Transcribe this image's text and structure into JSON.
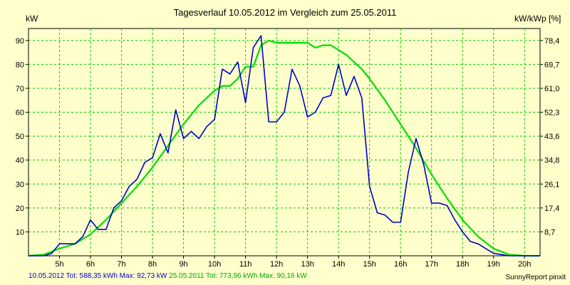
{
  "chart_data": {
    "type": "line",
    "title": "Tagesverlauf 10.05.2012 im Vergleich zum 25.05.2011",
    "ylabel_left": "kW",
    "ylabel_right": "kW/kWp [%]",
    "x_ticks": [
      "5h",
      "6h",
      "7h",
      "8h",
      "9h",
      "10h",
      "11h",
      "12h",
      "13h",
      "14h",
      "15h",
      "16h",
      "17h",
      "18h",
      "19h",
      "20h"
    ],
    "xlim": [
      4.0,
      20.5
    ],
    "ylim": [
      0,
      95
    ],
    "y_ticks_left": [
      10,
      20,
      30,
      40,
      50,
      60,
      70,
      80,
      90
    ],
    "y_ticks_right": [
      "8,7",
      "17,4",
      "26,1",
      "34,8",
      "43,6",
      "52,3",
      "61,0",
      "69,7",
      "78,4"
    ],
    "grid": true,
    "colors": {
      "background": "#ffffcc",
      "grid": "#00cc00",
      "series_2012": "#0000cc",
      "series_2011": "#00dd00"
    },
    "series": [
      {
        "name": "10.05.2012",
        "color": "#0000cc",
        "x": [
          4.0,
          4.5,
          4.75,
          5.0,
          5.25,
          5.5,
          5.75,
          6.0,
          6.25,
          6.5,
          6.75,
          7.0,
          7.25,
          7.5,
          7.75,
          8.0,
          8.25,
          8.5,
          8.75,
          9.0,
          9.25,
          9.5,
          9.75,
          10.0,
          10.25,
          10.5,
          10.75,
          11.0,
          11.25,
          11.5,
          11.75,
          12.0,
          12.25,
          12.5,
          12.75,
          13.0,
          13.25,
          13.5,
          13.75,
          14.0,
          14.25,
          14.5,
          14.75,
          15.0,
          15.25,
          15.5,
          15.75,
          16.0,
          16.25,
          16.5,
          16.75,
          17.0,
          17.25,
          17.5,
          17.75,
          18.0,
          18.25,
          18.5,
          18.75,
          19.0,
          19.25,
          19.5,
          19.75,
          20.0,
          20.5
        ],
        "values": [
          0,
          0,
          1,
          5,
          5,
          5,
          8,
          15,
          11,
          11,
          20,
          23,
          29,
          32,
          39,
          41,
          51,
          43,
          61,
          49,
          52,
          49,
          54,
          57,
          78,
          76,
          81,
          64,
          87,
          92,
          56,
          56,
          60,
          78,
          71,
          58,
          60,
          66,
          67,
          80,
          67,
          75,
          66,
          29,
          18,
          17,
          14,
          14,
          35,
          49,
          38,
          22,
          22,
          21,
          15,
          10,
          6,
          5,
          3,
          1,
          0.5,
          0,
          0,
          0,
          0
        ]
      },
      {
        "name": "25.05.2011",
        "color": "#00dd00",
        "x": [
          4.0,
          4.5,
          5.0,
          5.5,
          6.0,
          6.5,
          7.0,
          7.5,
          8.0,
          8.5,
          9.0,
          9.5,
          10.0,
          10.25,
          10.5,
          10.75,
          11.0,
          11.25,
          11.5,
          11.75,
          12.0,
          12.25,
          12.5,
          12.75,
          13.0,
          13.25,
          13.5,
          13.75,
          14.0,
          14.25,
          14.5,
          14.75,
          15.0,
          15.5,
          16.0,
          16.5,
          17.0,
          17.5,
          18.0,
          18.5,
          19.0,
          19.5,
          20.0,
          20.5
        ],
        "values": [
          0,
          0.5,
          3,
          5,
          9,
          15,
          22,
          29,
          37,
          46,
          55,
          63,
          69,
          71,
          71,
          74,
          79,
          79,
          88,
          90,
          89,
          89,
          89,
          89,
          89,
          87,
          88,
          88,
          86,
          84,
          81,
          78,
          74,
          65,
          55,
          45,
          34,
          24,
          15,
          8,
          3,
          0.5,
          0,
          0
        ]
      }
    ]
  },
  "footer": {
    "series_2012_text": "10.05.2012 Tot: 588,35 kWh Max: 92,73 kW",
    "series_2011_text": "25.05.2011 Tot: 773,96 kWh Max: 90,16 kW",
    "credit": "SunnyReport pinxit"
  }
}
